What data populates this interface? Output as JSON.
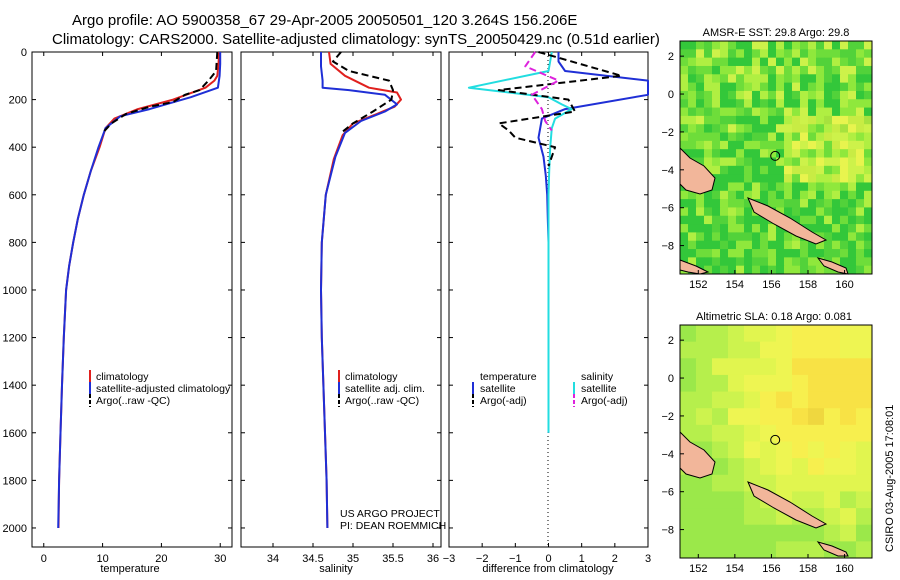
{
  "title": {
    "line1": "Argo profile: AO 5900358_67 29-Apr-2005 20050501_120 3.264S 156.206E",
    "line2": "Climatology: CARS2000. Satellite-adjusted climatology: synTS_20050429.nc (0.51d earlier)"
  },
  "chart_data": [
    {
      "type": "line",
      "id": "temperature",
      "xlabel": "temperature",
      "ylabel": "",
      "xlim": [
        -2,
        32
      ],
      "ylim": [
        2080,
        0
      ],
      "xticks": [
        0,
        10,
        20,
        30
      ],
      "yticks": [
        0,
        200,
        400,
        600,
        800,
        1000,
        1200,
        1400,
        1600,
        1800,
        2000
      ],
      "series": [
        {
          "name": "climatology",
          "color": "#e0201e",
          "dash": "",
          "x": [
            29.8,
            29.7,
            29.5,
            29.0,
            27.5,
            22.0,
            16.0,
            12.0,
            10.5,
            9.5,
            8.0,
            6.8,
            5.8,
            5.0,
            4.3,
            3.8,
            3.4,
            3.1,
            2.85,
            2.6,
            2.5
          ],
          "y": [
            0,
            50,
            100,
            120,
            150,
            200,
            240,
            280,
            320,
            400,
            500,
            600,
            700,
            800,
            900,
            1000,
            1200,
            1400,
            1600,
            1800,
            2000
          ]
        },
        {
          "name": "satellite-adjusted climatology",
          "color": "#1f2fd6",
          "dash": "",
          "x": [
            30.0,
            30.0,
            29.9,
            29.6,
            25.0,
            18.0,
            13.0,
            10.5,
            9.3,
            8.0,
            6.8,
            5.8,
            5.0,
            4.3,
            3.8,
            3.4,
            3.1,
            2.85,
            2.6,
            2.45
          ],
          "y": [
            0,
            50,
            100,
            150,
            190,
            240,
            270,
            320,
            400,
            500,
            600,
            700,
            800,
            900,
            1000,
            1200,
            1400,
            1600,
            1800,
            2000
          ]
        },
        {
          "name": "Argo(..raw -QC)",
          "color": "#000000",
          "dash": "7,4",
          "x": [
            29.5,
            29.4,
            29.3,
            28.0,
            26.5,
            24.0,
            22.0,
            18.0,
            14.0,
            11.5,
            10.0
          ],
          "y": [
            0,
            40,
            80,
            120,
            160,
            180,
            210,
            230,
            260,
            300,
            340
          ]
        }
      ],
      "legend": {
        "entries": [
          "climatology",
          "satellite-adjusted climatology",
          "Argo(..raw -QC)"
        ]
      }
    },
    {
      "type": "line",
      "id": "salinity",
      "xlabel": "salinity",
      "ylabel": "",
      "xlim": [
        33.6,
        36.1
      ],
      "ylim": [
        2080,
        0
      ],
      "xticks": [
        34,
        34.5,
        35,
        35.5,
        36
      ],
      "yticks": [
        0,
        200,
        400,
        600,
        800,
        1000,
        1200,
        1400,
        1600,
        1800,
        2000
      ],
      "series": [
        {
          "name": "climatology",
          "color": "#e0201e",
          "dash": "",
          "x": [
            34.7,
            34.72,
            34.9,
            35.2,
            35.55,
            35.6,
            35.52,
            35.3,
            35.0,
            34.87,
            34.76,
            34.66,
            34.61,
            34.6,
            34.61,
            34.63,
            34.65,
            34.67,
            34.68
          ],
          "y": [
            0,
            50,
            100,
            150,
            170,
            200,
            230,
            260,
            300,
            350,
            450,
            600,
            800,
            1000,
            1200,
            1400,
            1600,
            1800,
            2000
          ]
        },
        {
          "name": "satellite adj. clim.",
          "color": "#1f2fd6",
          "dash": "",
          "x": [
            34.6,
            34.6,
            34.62,
            34.62,
            34.95,
            35.4,
            35.55,
            35.4,
            35.1,
            34.9,
            34.78,
            34.66,
            34.61,
            34.6,
            34.61,
            34.63,
            34.65,
            34.67,
            34.68
          ],
          "y": [
            0,
            60,
            120,
            150,
            160,
            180,
            220,
            250,
            290,
            340,
            440,
            600,
            800,
            1000,
            1200,
            1400,
            1600,
            1800,
            2000
          ]
        },
        {
          "name": "Argo(..raw -QC)",
          "color": "#000000",
          "dash": "7,4",
          "x": [
            34.85,
            34.75,
            34.95,
            35.45,
            35.5,
            35.48,
            35.25,
            35.0,
            34.85
          ],
          "y": [
            0,
            40,
            80,
            120,
            160,
            200,
            250,
            300,
            340
          ]
        }
      ],
      "legend": {
        "entries": [
          "climatology",
          "satellite adj. clim.",
          "Argo(..raw -QC)"
        ]
      }
    },
    {
      "type": "line",
      "id": "difference",
      "xlabel": "difference from climatology",
      "ylabel": "",
      "xlim": [
        -3,
        3
      ],
      "ylim": [
        2080,
        0
      ],
      "xticks": [
        -3,
        -2,
        -1,
        0,
        1,
        2,
        3
      ],
      "yticks": [
        0,
        200,
        400,
        600,
        800,
        1000,
        1200,
        1400,
        1600,
        1800,
        2000
      ],
      "series": [
        {
          "name": "temperature satellite",
          "color": "#1f2fd6",
          "dash": "",
          "x": [
            0.3,
            0.3,
            0.5,
            3.0,
            3.0,
            0.5,
            -0.2,
            -0.3,
            -0.15,
            -0.08,
            -0.04,
            -0.02,
            0.0,
            0.0,
            0.0,
            0.0,
            0.0
          ],
          "y": [
            0,
            40,
            80,
            120,
            180,
            240,
            280,
            360,
            440,
            520,
            600,
            700,
            800,
            1000,
            1200,
            1400,
            1600
          ]
        },
        {
          "name": "salinity satellite",
          "color": "#22dde0",
          "dash": "",
          "x": [
            0.1,
            0.0,
            -2.4,
            0.0,
            0.4,
            0.7,
            0.2,
            0.1,
            0.05,
            0.02,
            0.0,
            0.0,
            0.0,
            0.0
          ],
          "y": [
            0,
            80,
            150,
            190,
            220,
            240,
            280,
            320,
            400,
            500,
            600,
            800,
            1000,
            1600
          ]
        },
        {
          "name": "temperature Argo(-adj)",
          "color": "#000000",
          "dash": "7,4",
          "x": [
            -0.3,
            2.2,
            -1.5,
            0.6,
            0.8,
            -1.5,
            -1.2,
            -1.0,
            0.2,
            0.1,
            0.0
          ],
          "y": [
            0,
            100,
            160,
            200,
            250,
            300,
            330,
            360,
            400,
            440,
            480
          ]
        },
        {
          "name": "salinity Argo(-adj)",
          "color": "#dd22dd",
          "dash": "7,4",
          "x": [
            -0.4,
            -0.7,
            0.3,
            -0.5,
            -0.2,
            -0.1,
            0.1
          ],
          "y": [
            0,
            60,
            120,
            180,
            240,
            290,
            330
          ]
        }
      ],
      "legend": {
        "entries": [
          "temperature",
          "satellite",
          "Argo(-adj)",
          "salinity",
          "satellite",
          "Argo(-adj)"
        ]
      }
    }
  ],
  "panels": {
    "temperature": {
      "xlabel": "temperature",
      "legend": [
        "climatology",
        "satellite-adjusted climatology",
        "Argo(..raw -QC)"
      ]
    },
    "salinity": {
      "xlabel": "salinity",
      "legend": [
        "climatology",
        "satellite adj. clim.",
        "Argo(..raw -QC)"
      ],
      "credit_line1": "US ARGO PROJECT",
      "credit_line2": "PI: DEAN ROEMMICH"
    },
    "difference": {
      "xlabel": "difference from climatology",
      "legend_col1": [
        "temperature",
        "satellite",
        "Argo(-adj)"
      ],
      "legend_col2": [
        "salinity",
        "satellite",
        "Argo(-adj)"
      ]
    }
  },
  "maps": [
    {
      "title": "AMSR-E SST: 29.8 Argo: 29.8",
      "xticks": [
        "152",
        "154",
        "156",
        "158",
        "160"
      ],
      "yticks": [
        "2",
        "0",
        "-2",
        "-4",
        "-6",
        "-8"
      ],
      "marker_lon": 156.206,
      "marker_lat": -3.264,
      "lon_range": [
        151,
        161.5
      ],
      "lat_range": [
        -9.5,
        2.8
      ]
    },
    {
      "title": "Altimetric SLA: 0.18 Argo: 0.081",
      "xticks": [
        "152",
        "154",
        "156",
        "158",
        "160"
      ],
      "yticks": [
        "2",
        "0",
        "-2",
        "-4",
        "-6",
        "-8"
      ],
      "marker_lon": 156.206,
      "marker_lat": -3.264,
      "lon_range": [
        151,
        161.5
      ],
      "lat_range": [
        -9.5,
        2.8
      ]
    }
  ],
  "stamp": "CSIRO 03-Aug-2005 17:08:01",
  "colors": {
    "climatology": "#e0201e",
    "satellite": "#1f2fd6",
    "argo": "#000000",
    "sal_sat": "#22dde0",
    "sal_argo": "#dd22dd",
    "land": "#f2b69a"
  }
}
